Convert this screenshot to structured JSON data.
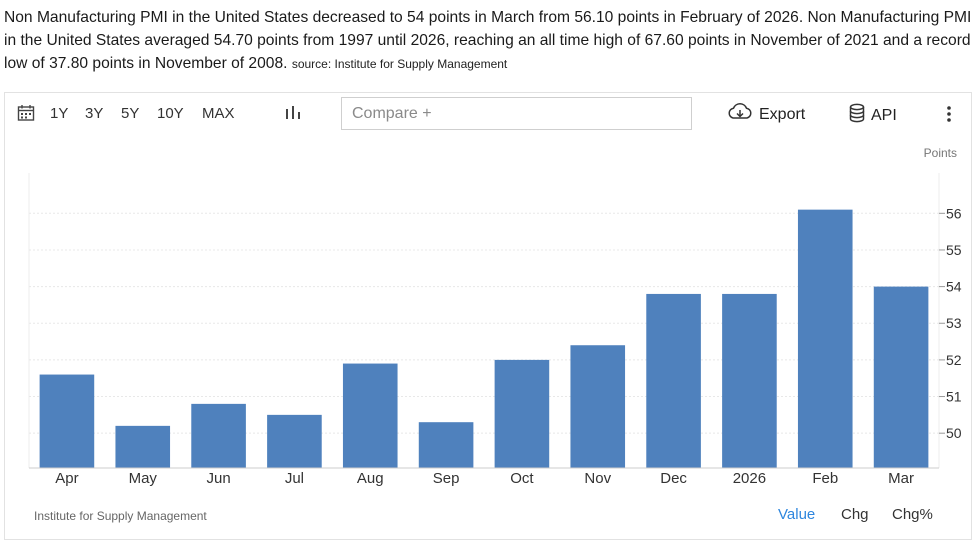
{
  "description": {
    "text": "Non Manufacturing PMI in the United States decreased to 54 points in March from 56.10 points in February of 2026. Non Manufacturing PMI in the United States averaged 54.70 points from 1997 until 2026, reaching an all time high of 67.60 points in November of 2021 and a record low of 37.80 points in November of 2008.",
    "source": "source: Institute for Supply Management"
  },
  "toolbar": {
    "ranges": [
      "1Y",
      "3Y",
      "5Y",
      "10Y",
      "MAX"
    ],
    "compare_placeholder": "Compare +",
    "export_label": "Export",
    "api_label": "API"
  },
  "footer": {
    "source": "Institute for Supply Management",
    "tabs": [
      "Value",
      "Chg",
      "Chg%"
    ],
    "active_tab": "Value",
    "active_color": "#2e86de"
  },
  "chart_data": {
    "type": "bar",
    "unit_label": "Points",
    "categories": [
      "Apr",
      "May",
      "Jun",
      "Jul",
      "Aug",
      "Sep",
      "Oct",
      "Nov",
      "Dec",
      "2026",
      "Feb",
      "Mar"
    ],
    "values": [
      51.6,
      50.2,
      50.8,
      50.5,
      51.9,
      50.3,
      52.0,
      52.4,
      53.8,
      53.8,
      56.1,
      54.0
    ],
    "ylim": [
      49.05,
      57.1
    ],
    "yticks": [
      50,
      51,
      52,
      53,
      54,
      55,
      56
    ],
    "bar_color": "#4f81bd",
    "grid": true,
    "y_axis_position": "right"
  }
}
